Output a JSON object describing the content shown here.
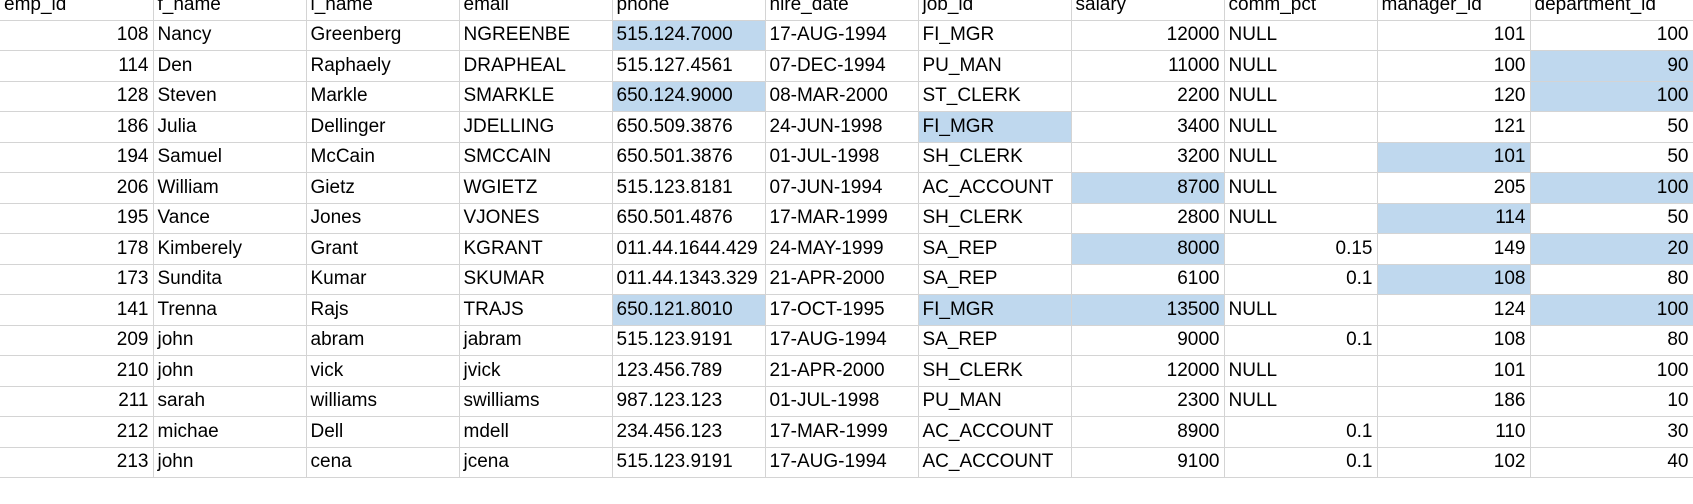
{
  "sheet": {
    "accent_color": "#217346",
    "highlight_color": "#bfd8ee",
    "gridline_color": "#d4d4d4",
    "columns": [
      {
        "key": "emp_id",
        "header": "emp_id",
        "align": "right"
      },
      {
        "key": "f_name",
        "header": "f_name",
        "align": "left"
      },
      {
        "key": "l_name",
        "header": "l_name",
        "align": "left",
        "active": true
      },
      {
        "key": "email",
        "header": "email",
        "align": "left"
      },
      {
        "key": "phone",
        "header": "phone",
        "align": "left"
      },
      {
        "key": "hire_date",
        "header": "hire_date",
        "align": "left"
      },
      {
        "key": "job_id",
        "header": "job_id",
        "align": "left"
      },
      {
        "key": "salary",
        "header": "salary",
        "align": "right"
      },
      {
        "key": "comm_pct",
        "header": "comm_pct",
        "align": "right"
      },
      {
        "key": "manager_id",
        "header": "manager_id",
        "align": "right"
      },
      {
        "key": "department_id",
        "header": "department_id",
        "align": "right"
      }
    ],
    "rows": [
      {
        "emp_id": "108",
        "f_name": "Nancy",
        "l_name": "Greenberg",
        "email": "NGREENBE",
        "phone": "515.124.7000",
        "hire_date": "17-AUG-1994",
        "job_id": "FI_MGR",
        "salary": "12000",
        "comm_pct": "NULL",
        "manager_id": "101",
        "department_id": "100",
        "highlighted": [
          "phone"
        ]
      },
      {
        "emp_id": "114",
        "f_name": "Den",
        "l_name": "Raphaely",
        "email": "DRAPHEAL",
        "phone": "515.127.4561",
        "hire_date": "07-DEC-1994",
        "job_id": "PU_MAN",
        "salary": "11000",
        "comm_pct": "NULL",
        "manager_id": "100",
        "department_id": "90",
        "highlighted": [
          "department_id"
        ]
      },
      {
        "emp_id": "128",
        "f_name": "Steven",
        "l_name": "Markle",
        "email": "SMARKLE",
        "phone": "650.124.9000",
        "hire_date": "08-MAR-2000",
        "job_id": "ST_CLERK",
        "salary": "2200",
        "comm_pct": "NULL",
        "manager_id": "120",
        "department_id": "100",
        "highlighted": [
          "phone",
          "department_id"
        ]
      },
      {
        "emp_id": "186",
        "f_name": "Julia",
        "l_name": "Dellinger",
        "email": "JDELLING",
        "phone": "650.509.3876",
        "hire_date": "24-JUN-1998",
        "job_id": "FI_MGR",
        "salary": "3400",
        "comm_pct": "NULL",
        "manager_id": "121",
        "department_id": "50",
        "highlighted": [
          "job_id"
        ]
      },
      {
        "emp_id": "194",
        "f_name": "Samuel",
        "l_name": "McCain",
        "email": "SMCCAIN",
        "phone": "650.501.3876",
        "hire_date": "01-JUL-1998",
        "job_id": "SH_CLERK",
        "salary": "3200",
        "comm_pct": "NULL",
        "manager_id": "101",
        "department_id": "50",
        "highlighted": [
          "manager_id"
        ]
      },
      {
        "emp_id": "206",
        "f_name": "William",
        "l_name": "Gietz",
        "email": "WGIETZ",
        "phone": "515.123.8181",
        "hire_date": "07-JUN-1994",
        "job_id": "AC_ACCOUNT",
        "salary": "8700",
        "comm_pct": "NULL",
        "manager_id": "205",
        "department_id": "100",
        "highlighted": [
          "salary",
          "department_id"
        ]
      },
      {
        "emp_id": "195",
        "f_name": "Vance",
        "l_name": "Jones",
        "email": "VJONES",
        "phone": "650.501.4876",
        "hire_date": "17-MAR-1999",
        "job_id": "SH_CLERK",
        "salary": "2800",
        "comm_pct": "NULL",
        "manager_id": "114",
        "department_id": "50",
        "highlighted": [
          "manager_id"
        ]
      },
      {
        "emp_id": "178",
        "f_name": "Kimberely",
        "l_name": "Grant",
        "email": "KGRANT",
        "phone": "011.44.1644.429",
        "hire_date": "24-MAY-1999",
        "job_id": "SA_REP",
        "salary": "8000",
        "comm_pct": "0.15",
        "manager_id": "149",
        "department_id": "20",
        "highlighted": [
          "salary",
          "department_id"
        ]
      },
      {
        "emp_id": "173",
        "f_name": "Sundita",
        "l_name": "Kumar",
        "email": "SKUMAR",
        "phone": "011.44.1343.329",
        "hire_date": "21-APR-2000",
        "job_id": "SA_REP",
        "salary": "6100",
        "comm_pct": "0.1",
        "manager_id": "108",
        "department_id": "80",
        "highlighted": [
          "manager_id"
        ]
      },
      {
        "emp_id": "141",
        "f_name": "Trenna",
        "l_name": "Rajs",
        "email": "TRAJS",
        "phone": "650.121.8010",
        "hire_date": "17-OCT-1995",
        "job_id": "FI_MGR",
        "salary": "13500",
        "comm_pct": "NULL",
        "manager_id": "124",
        "department_id": "100",
        "highlighted": [
          "phone",
          "job_id",
          "salary",
          "department_id"
        ]
      },
      {
        "emp_id": "209",
        "f_name": "john",
        "l_name": "abram",
        "email": "jabram",
        "phone": "515.123.9191",
        "hire_date": "17-AUG-1994",
        "job_id": "SA_REP",
        "salary": "9000",
        "comm_pct": "0.1",
        "manager_id": "108",
        "department_id": "80",
        "highlighted": []
      },
      {
        "emp_id": "210",
        "f_name": "john",
        "l_name": "vick",
        "email": "jvick",
        "phone": "123.456.789",
        "hire_date": "21-APR-2000",
        "job_id": "SH_CLERK",
        "salary": "12000",
        "comm_pct": "NULL",
        "manager_id": "101",
        "department_id": "100",
        "highlighted": []
      },
      {
        "emp_id": "211",
        "f_name": "sarah",
        "l_name": "williams",
        "email": "swilliams",
        "phone": "987.123.123",
        "hire_date": "01-JUL-1998",
        "job_id": "PU_MAN",
        "salary": "2300",
        "comm_pct": "NULL",
        "manager_id": "186",
        "department_id": "10",
        "highlighted": []
      },
      {
        "emp_id": "212",
        "f_name": "michae",
        "l_name": "Dell",
        "email": "mdell",
        "phone": "234.456.123",
        "hire_date": "17-MAR-1999",
        "job_id": "AC_ACCOUNT",
        "salary": "8900",
        "comm_pct": "0.1",
        "manager_id": "110",
        "department_id": "30",
        "highlighted": []
      },
      {
        "emp_id": "213",
        "f_name": "john",
        "l_name": "cena",
        "email": "jcena",
        "phone": "515.123.9191",
        "hire_date": "17-AUG-1994",
        "job_id": "AC_ACCOUNT",
        "salary": "9100",
        "comm_pct": "0.1",
        "manager_id": "102",
        "department_id": "40",
        "highlighted": []
      }
    ]
  }
}
